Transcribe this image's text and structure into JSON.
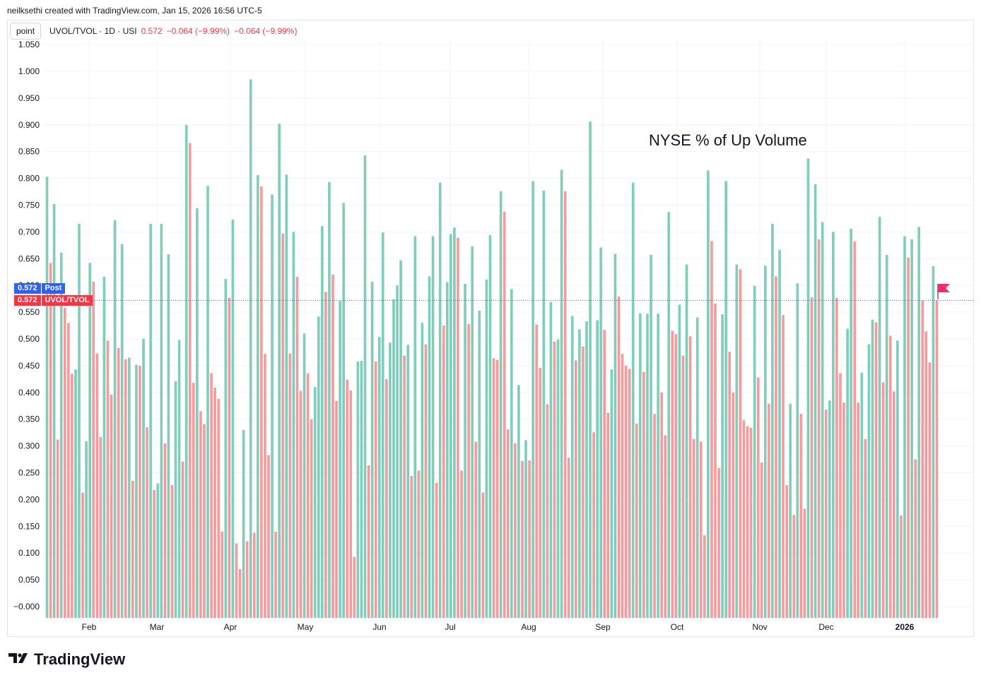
{
  "credit": "neilksethi created with TradingView.com, Jan 15, 2026 16:56 UTC-5",
  "legend": {
    "button": "point",
    "symbol": "UVOL/TVOL · 1D · USI",
    "value": "0.572",
    "change1": "−0.064 (−9.99%)",
    "change2": "−0.064 (−9.99%)"
  },
  "badges": {
    "post_value": "0.572",
    "post_label": "Post",
    "main_value": "0.572",
    "main_label": "UVOL/TVOL"
  },
  "footer": {
    "brand": "TradingView"
  },
  "colors": {
    "up": "#7fcdbb",
    "down": "#f59b9e",
    "post_badge": "#2962ff",
    "main_badge": "#f23645",
    "flag": "#f7296f"
  },
  "chart_data": {
    "type": "bar",
    "annotation": "NYSE % of Up Volume",
    "ylim": [
      -0.02,
      1.05
    ],
    "yticks": [
      "1.050",
      "1.000",
      "0.950",
      "0.900",
      "0.850",
      "0.800",
      "0.750",
      "0.700",
      "0.650",
      "0.600",
      "0.550",
      "0.500",
      "0.450",
      "0.400",
      "0.350",
      "0.300",
      "0.250",
      "0.200",
      "0.150",
      "0.100",
      "0.050",
      "−0.000"
    ],
    "xticks": [
      "Feb",
      "Mar",
      "Apr",
      "May",
      "Jun",
      "Jul",
      "Aug",
      "Sep",
      "Oct",
      "Nov",
      "Dec",
      "2026"
    ],
    "last_value": 0.572,
    "values": [
      0.803,
      0.642,
      0.752,
      0.312,
      0.661,
      0.558,
      0.53,
      0.435,
      0.443,
      0.715,
      0.213,
      0.309,
      0.642,
      0.607,
      0.473,
      0.317,
      0.616,
      0.497,
      0.396,
      0.722,
      0.483,
      0.677,
      0.462,
      0.465,
      0.235,
      0.452,
      0.45,
      0.5,
      0.335,
      0.715,
      0.218,
      0.23,
      0.715,
      0.305,
      0.658,
      0.227,
      0.421,
      0.498,
      0.271,
      0.9,
      0.866,
      0.418,
      0.744,
      0.365,
      0.341,
      0.786,
      0.436,
      0.409,
      0.388,
      0.14,
      0.612,
      0.577,
      0.723,
      0.118,
      0.07,
      0.33,
      0.122,
      0.985,
      0.138,
      0.806,
      0.785,
      0.472,
      0.283,
      0.77,
      0.14,
      0.902,
      0.697,
      0.807,
      0.473,
      0.7,
      0.616,
      0.403,
      0.51,
      0.436,
      0.35,
      0.41,
      0.542,
      0.711,
      0.588,
      0.793,
      0.62,
      0.384,
      0.571,
      0.754,
      0.424,
      0.404,
      0.093,
      0.458,
      0.459,
      0.843,
      0.264,
      0.607,
      0.458,
      0.504,
      0.699,
      0.425,
      0.493,
      0.574,
      0.6,
      0.647,
      0.469,
      0.489,
      0.244,
      0.692,
      0.254,
      0.53,
      0.49,
      0.617,
      0.692,
      0.231,
      0.792,
      0.525,
      0.606,
      0.696,
      0.708,
      0.689,
      0.254,
      0.603,
      0.528,
      0.673,
      0.308,
      0.553,
      0.213,
      0.611,
      0.694,
      0.464,
      0.461,
      0.776,
      0.738,
      0.331,
      0.593,
      0.305,
      0.414,
      0.272,
      0.311,
      0.273,
      0.795,
      0.527,
      0.446,
      0.777,
      0.378,
      0.569,
      0.495,
      0.499,
      0.816,
      0.776,
      0.278,
      0.543,
      0.46,
      0.518,
      0.486,
      0.533,
      0.906,
      0.326,
      0.535,
      0.671,
      0.517,
      0.362,
      0.443,
      0.659,
      0.579,
      0.472,
      0.45,
      0.444,
      0.792,
      0.342,
      0.548,
      0.438,
      0.547,
      0.657,
      0.36,
      0.547,
      0.4,
      0.32,
      0.737,
      0.515,
      0.509,
      0.564,
      0.469,
      0.639,
      0.505,
      0.313,
      0.54,
      0.308,
      0.133,
      0.815,
      0.683,
      0.566,
      0.259,
      0.546,
      0.795,
      0.476,
      0.4,
      0.639,
      0.63,
      0.348,
      0.337,
      0.334,
      0.599,
      0.428,
      0.269,
      0.637,
      0.379,
      0.715,
      0.617,
      0.666,
      0.545,
      0.227,
      0.379,
      0.171,
      0.604,
      0.36,
      0.183,
      0.837,
      0.578,
      0.789,
      0.686,
      0.718,
      0.368,
      0.385,
      0.7,
      0.577,
      0.436,
      0.381,
      0.519,
      0.706,
      0.682,
      0.381,
      0.437,
      0.313,
      0.49,
      0.536,
      0.531,
      0.728,
      0.419,
      0.657,
      0.506,
      0.402,
      0.497,
      0.17,
      0.692,
      0.652,
      0.686,
      0.275,
      0.709,
      0.572,
      0.514,
      0.456,
      0.636,
      0.572
    ]
  }
}
